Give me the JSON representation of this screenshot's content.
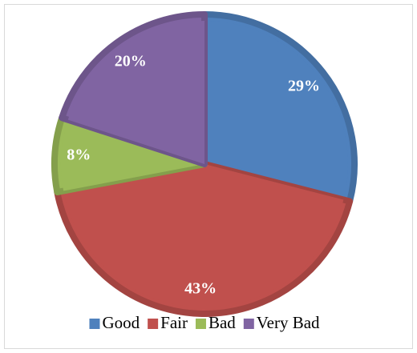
{
  "chart_data": {
    "type": "pie",
    "categories": [
      "Good",
      "Fair",
      "Bad",
      "Very Bad"
    ],
    "values": [
      29,
      43,
      8,
      20
    ],
    "value_labels": [
      "29%",
      "43%",
      "8%",
      "20%"
    ],
    "colors": [
      "#4f81bd",
      "#c0504d",
      "#9bbb59",
      "#8064a2"
    ],
    "legend": "bottom"
  }
}
